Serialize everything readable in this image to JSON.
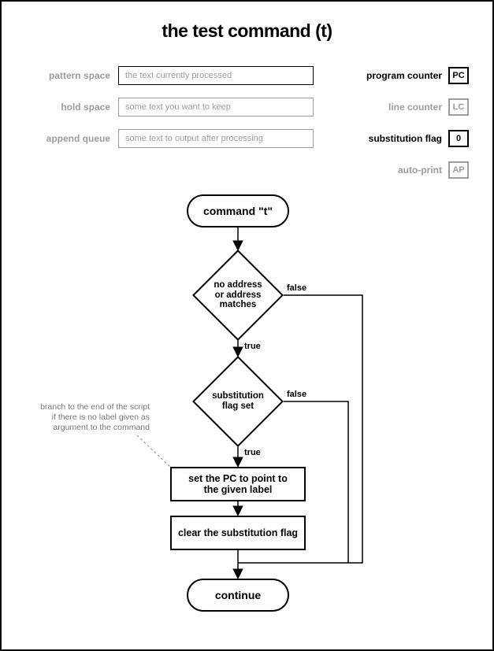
{
  "title": "the test command (t)",
  "state": {
    "pattern_space": {
      "label": "pattern space",
      "value": "the text currently processed",
      "border": "#000000",
      "text": "#9c9c9c"
    },
    "hold_space": {
      "label": "hold space",
      "value": "some text you want to keep",
      "border": "#9c9c9c",
      "text": "#9c9c9c"
    },
    "append_queue": {
      "label": "append queue",
      "value": "some text to output after processing",
      "border": "#9c9c9c",
      "text": "#9c9c9c"
    },
    "program_counter": {
      "label": "program counter",
      "value": "PC",
      "label_color": "#000000",
      "border": "#000000",
      "text": "#000000"
    },
    "line_counter": {
      "label": "line counter",
      "value": "LC",
      "label_color": "#9c9c9c",
      "border": "#9c9c9c",
      "text": "#9c9c9c"
    },
    "substitution_flag": {
      "label": "substitution flag",
      "value": "0",
      "label_color": "#000000",
      "border": "#000000",
      "text": "#000000"
    },
    "auto_print": {
      "label": "auto-print",
      "value": "AP",
      "label_color": "#9c9c9c",
      "border": "#9c9c9c",
      "text": "#9c9c9c"
    }
  },
  "annotation": "branch to the end of the script\nif there is no label given as\nargument to the command",
  "flow": {
    "type": "flowchart",
    "background_color": "#ffffff",
    "stroke_color": "#000000",
    "line_width": 1.5,
    "nodes": {
      "start": {
        "label": "command \"t\""
      },
      "d1": {
        "label": "no address\nor address\nmatches"
      },
      "d2": {
        "label": "substitution\nflag set"
      },
      "r1": {
        "label": "set the PC to point to\nthe given label"
      },
      "r2": {
        "label": "clear the substitution flag"
      },
      "end": {
        "label": "continue"
      }
    },
    "edge_labels": {
      "d1_true": "true",
      "d1_false": "false",
      "d2_true": "true",
      "d2_false": "false"
    }
  }
}
